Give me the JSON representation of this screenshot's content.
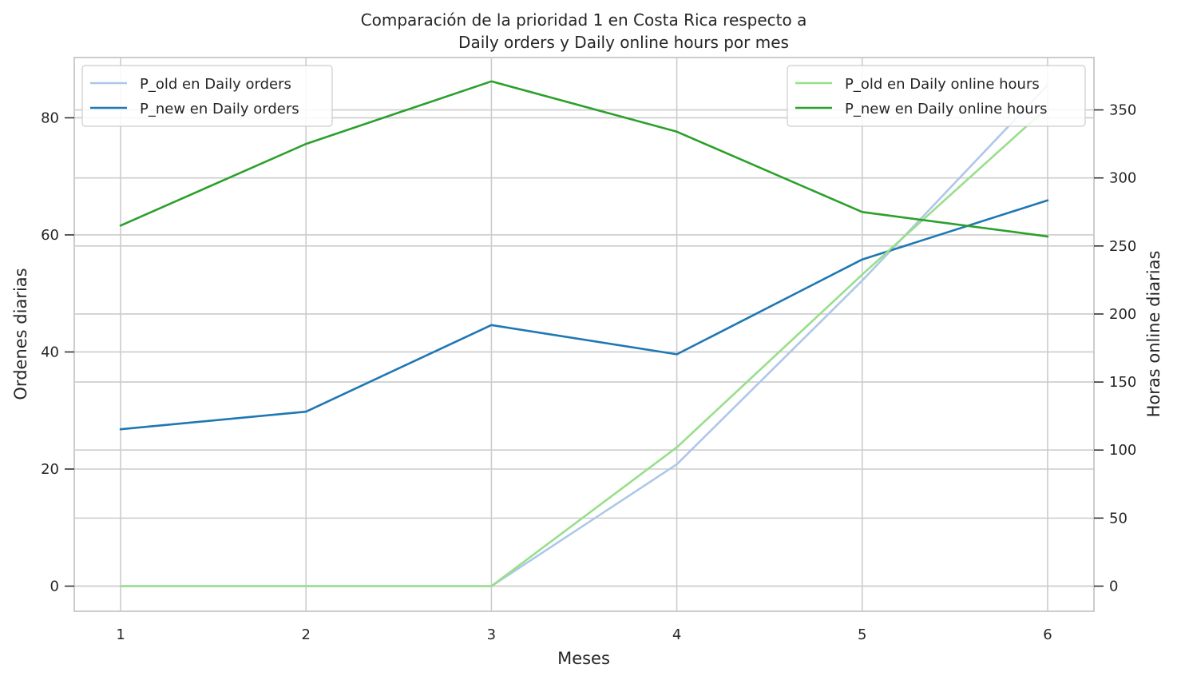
{
  "chart_data": {
    "type": "line",
    "title_line1": "Comparación de la prioridad 1 en Costa Rica respecto a",
    "title_line2": "Daily orders y Daily online hours por mes",
    "xlabel": "Meses",
    "ylabel_left": "Ordenes diarias",
    "ylabel_right": "Horas online diarias",
    "x": [
      1,
      2,
      3,
      4,
      5,
      6
    ],
    "xlim": [
      0.75,
      6.25
    ],
    "ylim_left": [
      -4.3,
      90.3
    ],
    "ylim_right": [
      -18.5,
      388.5
    ],
    "yticks_left": [
      0,
      20,
      40,
      60,
      80
    ],
    "yticks_right": [
      0,
      50,
      100,
      150,
      200,
      250,
      300,
      350
    ],
    "grid": true,
    "legend_left_placement": "upper-left",
    "legend_right_placement": "upper-right",
    "series": [
      {
        "name": "P_old en Daily orders",
        "axis": "left",
        "color": "#aec7e8",
        "values": [
          0,
          0,
          0,
          20.8,
          52.2,
          85.6
        ]
      },
      {
        "name": "P_new en Daily orders",
        "axis": "left",
        "color": "#1f77b4",
        "values": [
          26.8,
          29.8,
          44.6,
          39.6,
          55.8,
          65.9
        ]
      },
      {
        "name": "P_old en Daily online hours",
        "axis": "right",
        "color": "#98df8a",
        "values": [
          0,
          0,
          0,
          102,
          229,
          352
        ]
      },
      {
        "name": "P_new en Daily online hours",
        "axis": "right",
        "color": "#2ca02c",
        "values": [
          265,
          325,
          371,
          334,
          275,
          257
        ]
      }
    ]
  }
}
